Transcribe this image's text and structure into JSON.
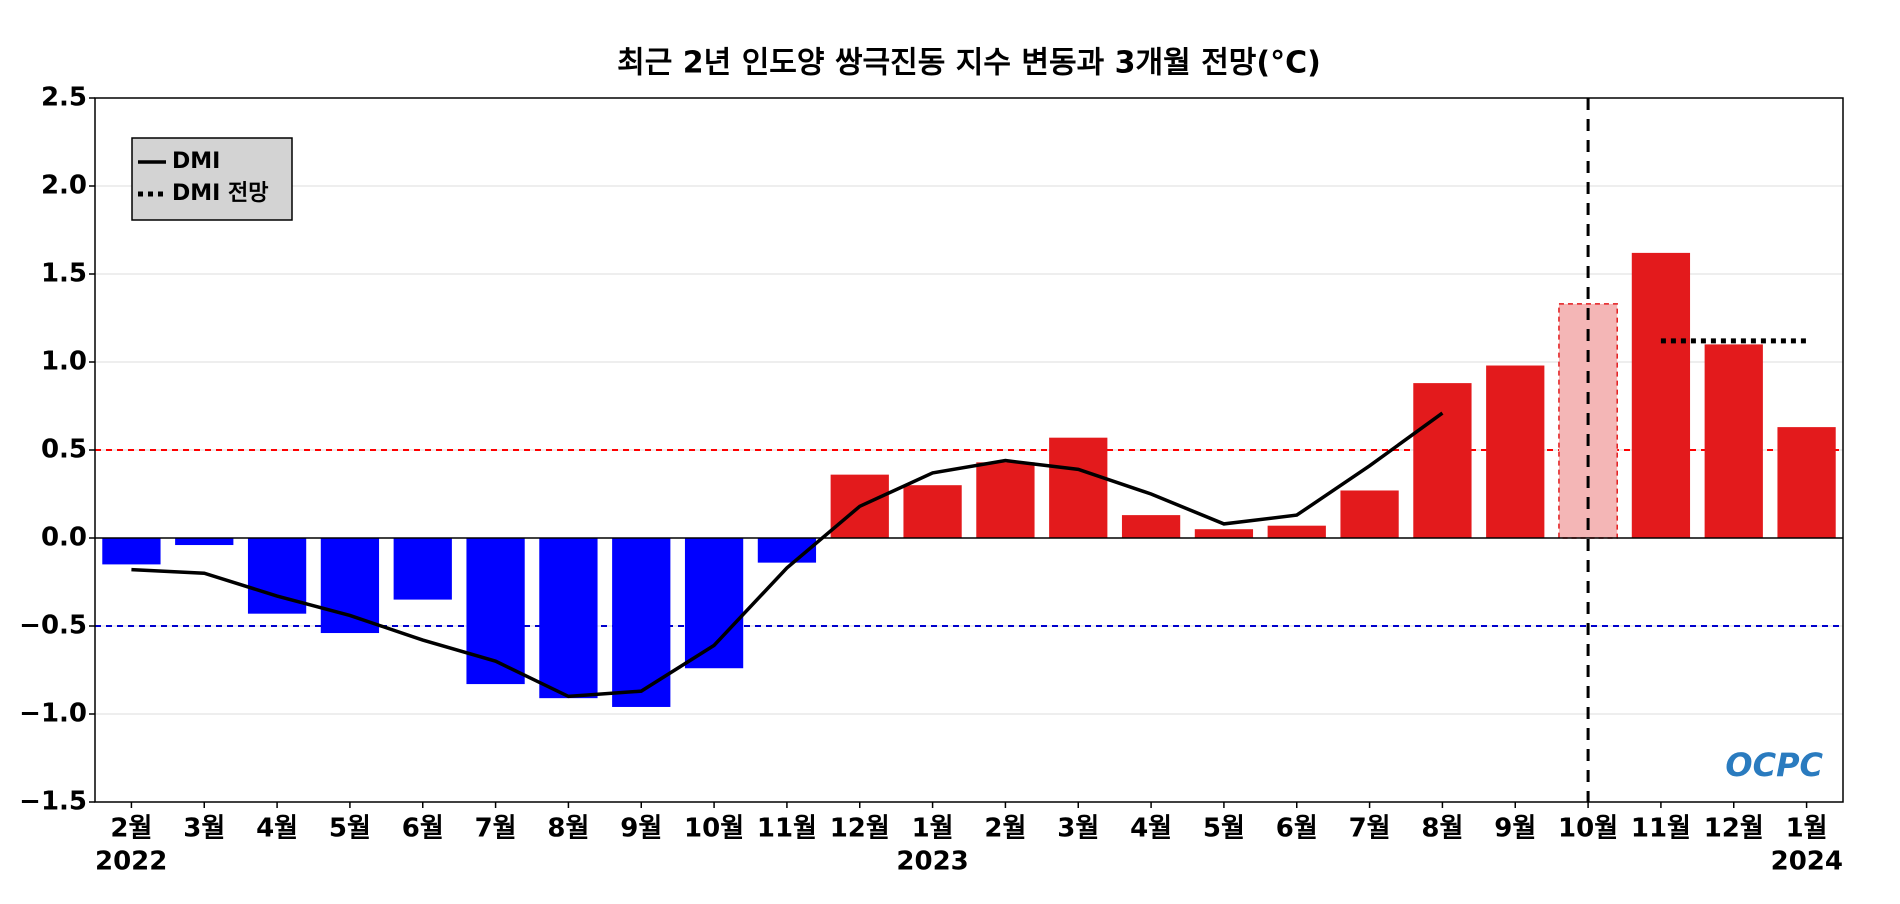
{
  "chart_data": {
    "type": "bar",
    "title": "최근 2년 인도양 쌍극진동 지수 변동과 3개월 전망(°C)",
    "categories": [
      "2월",
      "3월",
      "4월",
      "5월",
      "6월",
      "7월",
      "8월",
      "9월",
      "10월",
      "11월",
      "12월",
      "1월",
      "2월",
      "3월",
      "4월",
      "5월",
      "6월",
      "7월",
      "8월",
      "9월",
      "10월",
      "11월",
      "12월",
      "1월"
    ],
    "year_labels": [
      "2022",
      null,
      null,
      null,
      null,
      null,
      null,
      null,
      null,
      null,
      null,
      "2023",
      null,
      null,
      null,
      null,
      null,
      null,
      null,
      null,
      null,
      null,
      null,
      "2024"
    ],
    "values": [
      -0.15,
      -0.04,
      -0.43,
      -0.54,
      -0.35,
      -0.83,
      -0.91,
      -0.96,
      -0.74,
      -0.14,
      0.36,
      0.3,
      0.43,
      0.57,
      0.13,
      0.05,
      0.07,
      0.27,
      0.88,
      0.98,
      1.33,
      1.62,
      1.1,
      0.63
    ],
    "bar_colors": [
      "#0000ff",
      "#0000ff",
      "#0000ff",
      "#0000ff",
      "#0000ff",
      "#0000ff",
      "#0000ff",
      "#0000ff",
      "#0000ff",
      "#0000ff",
      "#e31a1c",
      "#e31a1c",
      "#e31a1c",
      "#e31a1c",
      "#e31a1c",
      "#e31a1c",
      "#e31a1c",
      "#e31a1c",
      "#e31a1c",
      "#e31a1c",
      "#f4b6b6",
      "#e31a1c",
      "#e31a1c",
      "#e31a1c"
    ],
    "series": [
      {
        "name": "DMI",
        "color": "#000000",
        "style": "solid",
        "values": [
          -0.18,
          -0.2,
          -0.33,
          -0.44,
          -0.58,
          -0.7,
          -0.9,
          -0.87,
          -0.61,
          -0.17,
          0.18,
          0.37,
          0.44,
          0.39,
          0.25,
          0.08,
          0.13,
          0.41,
          0.71,
          null,
          null,
          null,
          null,
          null
        ]
      },
      {
        "name": "DMI 전망",
        "color": "#000000",
        "style": "dotted",
        "values": [
          null,
          null,
          null,
          null,
          null,
          null,
          null,
          null,
          null,
          null,
          null,
          null,
          null,
          null,
          null,
          null,
          null,
          null,
          null,
          null,
          null,
          1.12,
          1.12,
          1.12
        ]
      }
    ],
    "ylim": [
      -1.5,
      2.5
    ],
    "yticks": [
      {
        "value": -1.5,
        "label": "−1.5"
      },
      {
        "value": -1.0,
        "label": "−1.0"
      },
      {
        "value": -0.5,
        "label": "−0.5"
      },
      {
        "value": 0,
        "label": "0.0"
      },
      {
        "value": 0.5,
        "label": "0.5"
      },
      {
        "value": 1.0,
        "label": "1.0"
      },
      {
        "value": 1.5,
        "label": "1.5"
      },
      {
        "value": 2.0,
        "label": "2.0"
      },
      {
        "value": 2.5,
        "label": "2.5"
      }
    ],
    "grid": true,
    "hlines": [
      {
        "value": 0.5,
        "color": "#ff0000"
      },
      {
        "value": -0.5,
        "color": "#0000cc"
      }
    ],
    "vline_index": 20,
    "legend": "upper left",
    "logo": "OCPC"
  }
}
